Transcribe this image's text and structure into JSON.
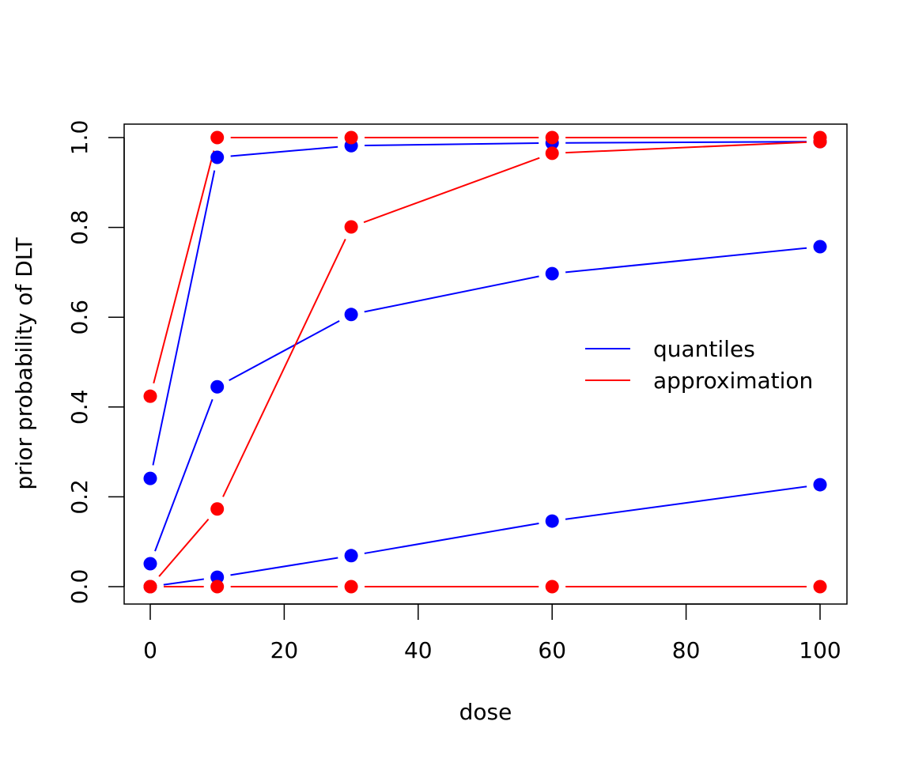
{
  "chart_data": {
    "type": "line",
    "title": "",
    "xlabel": "dose",
    "ylabel": "prior probability of DLT",
    "xlim": [
      0,
      100
    ],
    "ylim": [
      0,
      1
    ],
    "xticks": [
      "0",
      "20",
      "40",
      "60",
      "80",
      "100"
    ],
    "yticks": [
      "0.0",
      "0.2",
      "0.4",
      "0.6",
      "0.8",
      "1.0"
    ],
    "grid": false,
    "legend_position": "right",
    "legend": [
      {
        "label": "quantiles",
        "color": "#0000ff"
      },
      {
        "label": "approximation",
        "color": "#ff0000"
      }
    ],
    "x": [
      0,
      10,
      30,
      60,
      100
    ],
    "series": [
      {
        "group": "quantiles",
        "color": "#0000ff",
        "values": [
          0.0,
          0.021,
          0.069,
          0.146,
          0.227
        ]
      },
      {
        "group": "quantiles",
        "color": "#0000ff",
        "values": [
          0.051,
          0.445,
          0.606,
          0.697,
          0.757
        ]
      },
      {
        "group": "quantiles",
        "color": "#0000ff",
        "values": [
          0.241,
          0.956,
          0.982,
          0.988,
          0.991
        ]
      },
      {
        "group": "approximation",
        "color": "#ff0000",
        "values": [
          0.0,
          0.0,
          0.0,
          0.0,
          0.0
        ]
      },
      {
        "group": "approximation",
        "color": "#ff0000",
        "values": [
          0.0,
          0.173,
          0.801,
          0.965,
          0.991
        ]
      },
      {
        "group": "approximation",
        "color": "#ff0000",
        "values": [
          0.424,
          1.0,
          1.0,
          1.0,
          1.0
        ]
      }
    ]
  }
}
